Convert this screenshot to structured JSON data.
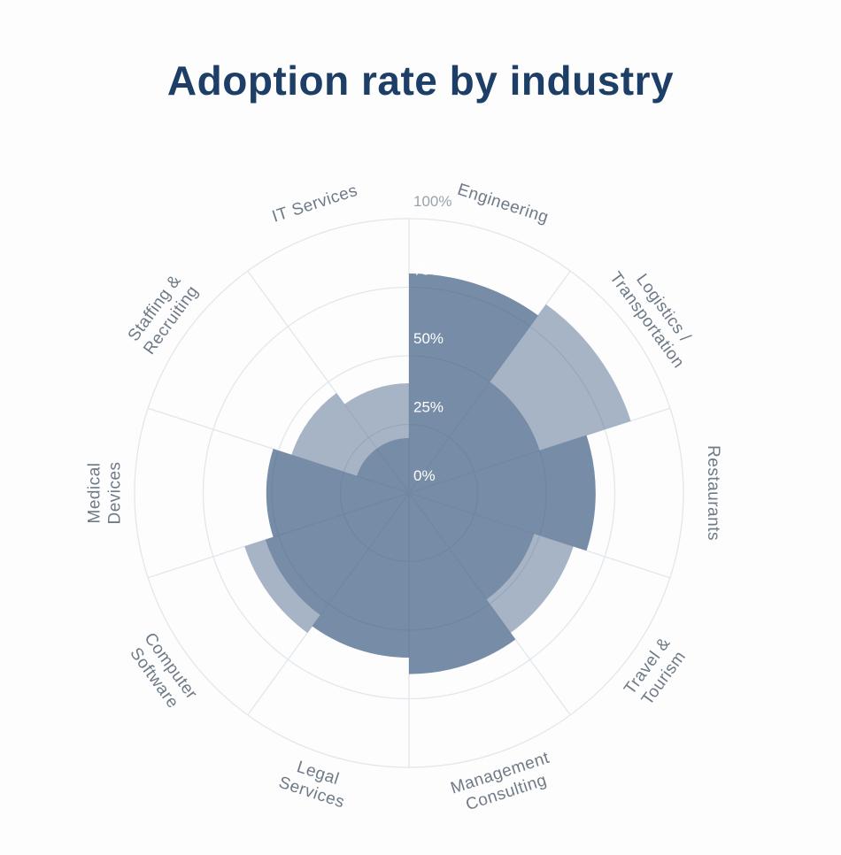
{
  "title": "Adoption rate by industry",
  "chart_data": {
    "type": "bar",
    "subtype": "polar",
    "title": "Adoption rate by industry",
    "categories": [
      "Engineering",
      "Logistics / Transportation",
      "Restaurants",
      "Travel & Tourism",
      "Management Consulting",
      "Legal Services",
      "Computer Software",
      "Medical Devices",
      "Staffing & Recruiting",
      "IT Services"
    ],
    "label_lines": [
      [
        "Engineering"
      ],
      [
        "Logistics /",
        "Transportation"
      ],
      [
        "Restaurants"
      ],
      [
        "Travel &",
        "Tourism"
      ],
      [
        "Management",
        "Consulting"
      ],
      [
        "Legal",
        "Services"
      ],
      [
        "Computer",
        "Software"
      ],
      [
        "Medical",
        "Devices"
      ],
      [
        "Staffing &",
        "Recruiting"
      ],
      [
        "IT Services"
      ]
    ],
    "series": [
      {
        "name": "outer-extent",
        "values": [
          80,
          85,
          68,
          63,
          66,
          60,
          63,
          52,
          45,
          40
        ]
      },
      {
        "name": "inner-core",
        "values": [
          80,
          50,
          68,
          48,
          66,
          60,
          55,
          52,
          20,
          20
        ]
      }
    ],
    "radial_ticks": [
      "0%",
      "25%",
      "50%",
      "75%",
      "100%"
    ],
    "radial_range": [
      0,
      100
    ],
    "angular_start": "top",
    "direction": "clockwise",
    "sector_width_degrees": 36,
    "grid": true,
    "legend": false,
    "colors": {
      "fill": "rgba(62,90,128,0.45)",
      "grid": "#e1e7ec",
      "label": "#6e7a87",
      "tick_inside": "#ffffff",
      "tick_outside": "#9aa3ab",
      "title": "#1d3e66",
      "background": "#fdfdfd"
    }
  }
}
